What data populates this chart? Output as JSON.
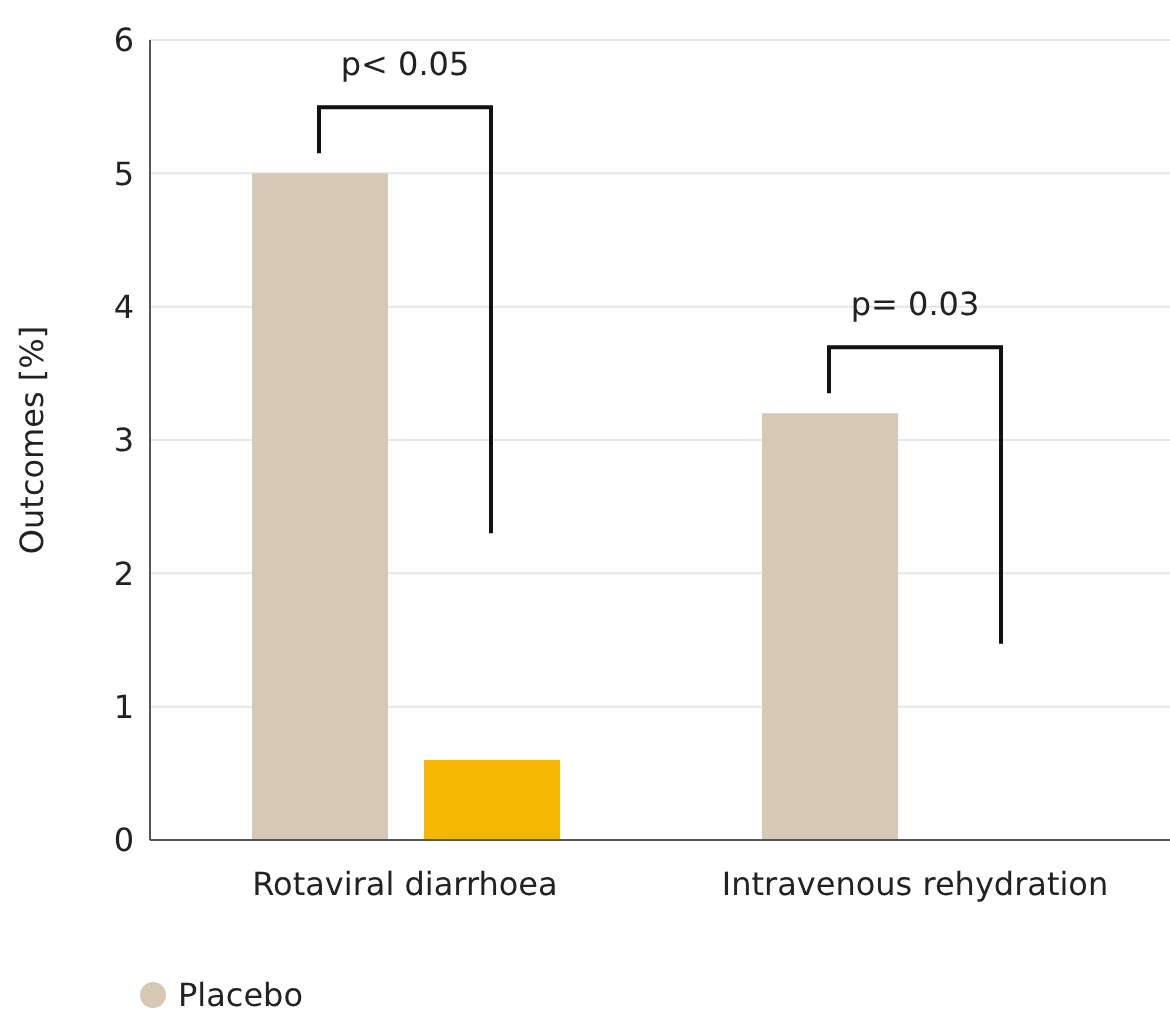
{
  "chart_data": {
    "type": "bar",
    "ylabel": "Outcomes [%]",
    "categories": [
      "Rotaviral diarrhoea",
      "Intravenous rehydration"
    ],
    "series": [
      {
        "name": "Placebo",
        "color": "#d5c9b5",
        "values": [
          5.0,
          3.2
        ]
      },
      {
        "color": "#f5b800",
        "values": [
          0.6,
          0
        ]
      }
    ],
    "ylim": [
      0,
      6
    ],
    "yticks": [
      0,
      1,
      2,
      3,
      4,
      5,
      6
    ],
    "grid": "y",
    "legend": "bottom",
    "annotations": [
      "p< 0.05",
      "p= 0.03"
    ]
  }
}
